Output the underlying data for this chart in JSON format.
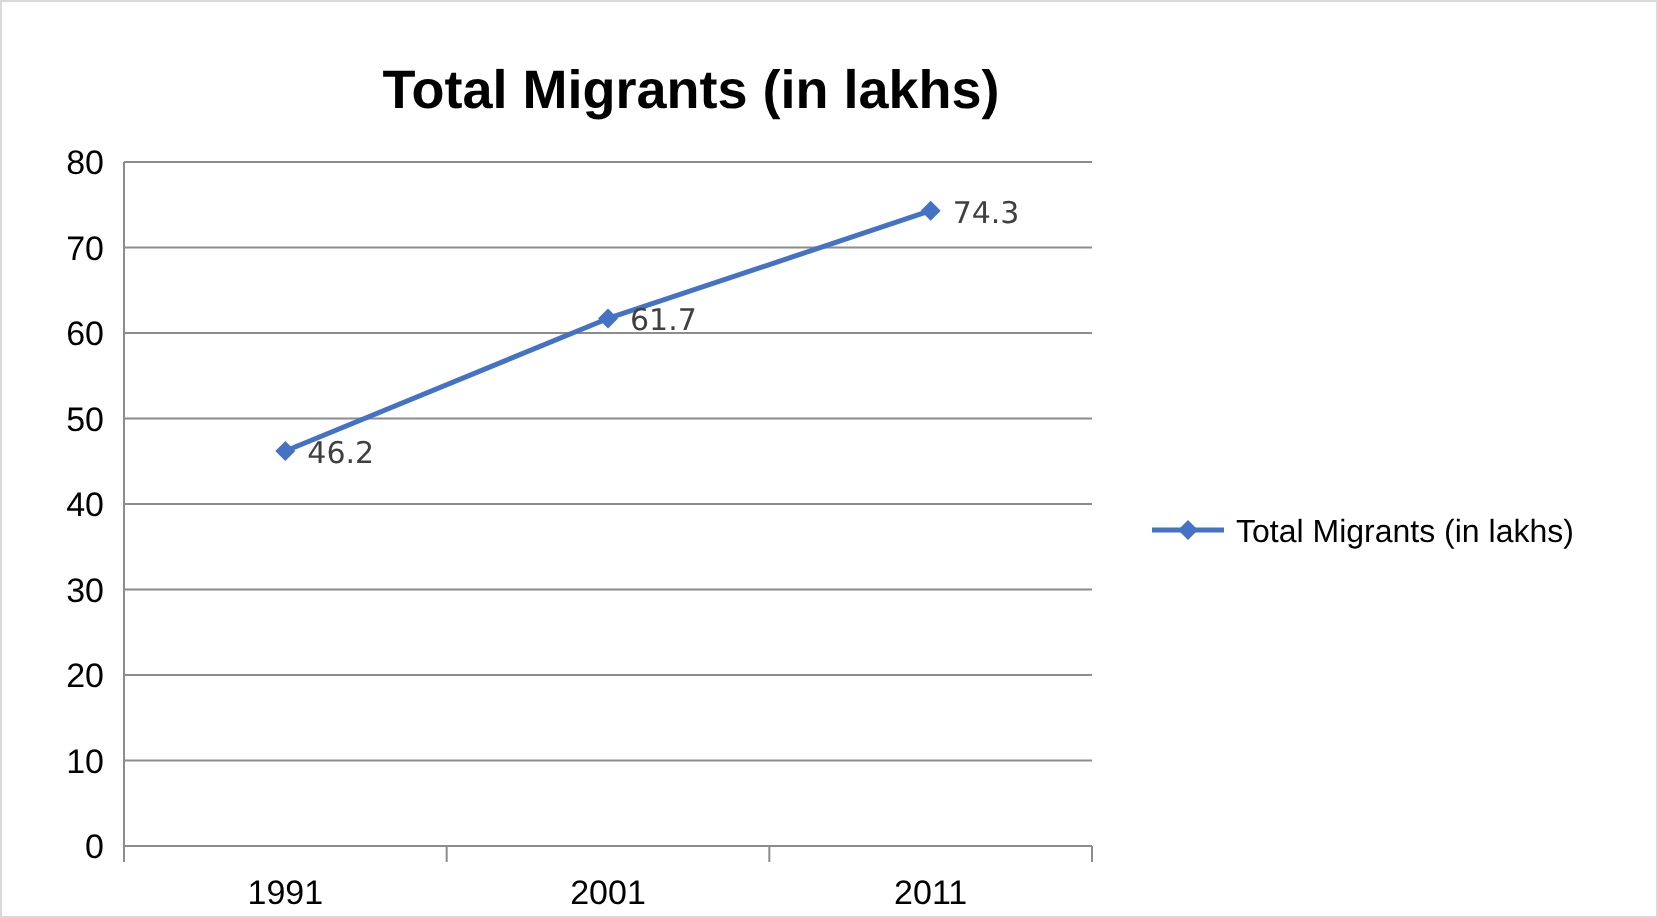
{
  "chart_data": {
    "type": "line",
    "title": "Total Migrants (in lakhs)",
    "categories": [
      "1991",
      "2001",
      "2011"
    ],
    "series": [
      {
        "name": "Total Migrants (in lakhs)",
        "color": "#4472c4",
        "values": [
          46.2,
          61.7,
          74.3
        ]
      }
    ],
    "ylim": [
      0,
      80
    ],
    "yticks": [
      0,
      10,
      20,
      30,
      40,
      50,
      60,
      70,
      80
    ],
    "grid": "y",
    "legend": "right",
    "marker": "diamond",
    "line_style": "solid",
    "data_labels": true
  }
}
